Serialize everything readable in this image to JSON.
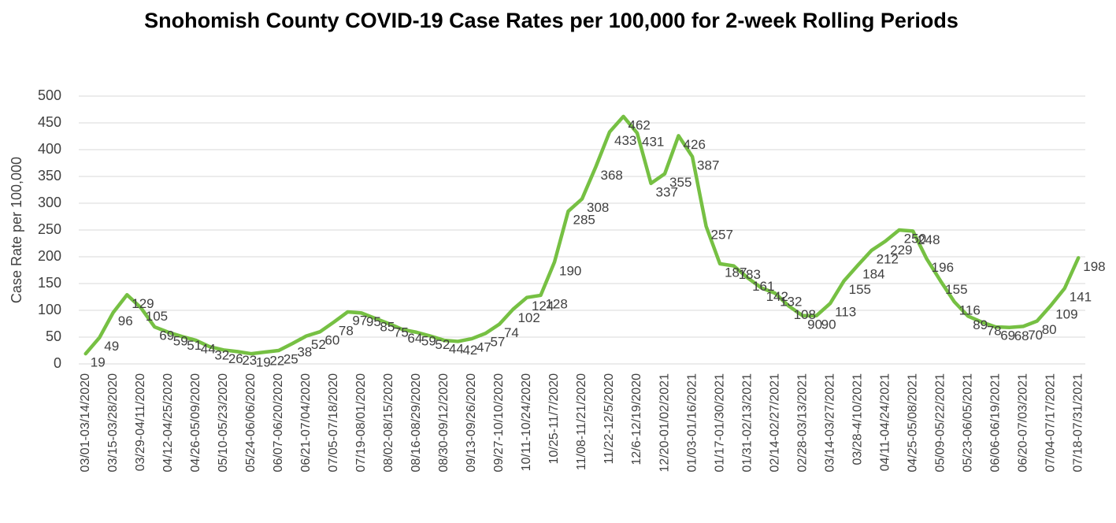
{
  "chart_data": {
    "type": "line",
    "title": "Snohomish County COVID-19 Case Rates per 100,000 for 2-week Rolling Periods",
    "y_label": "Case Rate per 100,000",
    "categories": [
      "03/01-03/14/2020",
      null,
      "03/15-03/28/2020",
      null,
      "03/29-04/11/2020",
      null,
      "04/12-04/25/2020",
      null,
      "04/26-05/09/2020",
      null,
      "05/10-05/23/2020",
      null,
      "05/24-06/06/2020",
      null,
      "06/07-06/20/2020",
      null,
      "06/21-07/04/2020",
      null,
      "07/05-07/18/2020",
      null,
      "07/19-08/01/2020",
      null,
      "08/02-08/15/2020",
      null,
      "08/16-08/29/2020",
      null,
      "08/30-09/12/2020",
      null,
      "09/13-09/26/2020",
      null,
      "09/27-10/10/2020",
      null,
      "10/11-10/24/2020",
      null,
      "10/25-11/7/2020",
      null,
      "11/08-11/21/2020",
      null,
      "11/22-12/5/2020",
      null,
      "12/6-12/19/2020",
      null,
      "12/20-01/02/2021",
      null,
      "01/03-01/16/2021",
      null,
      "01/17-01/30/2021",
      null,
      "01/31-02/13/2021",
      null,
      "02/14-02/27/2021",
      null,
      "02/28-03/13/2021",
      null,
      "03/14-03/27/2021",
      null,
      "03/28-4/10/2021",
      null,
      "04/11-04/24/2021",
      null,
      "04/25-05/08/2021",
      null,
      "05/09-05/22/2021",
      null,
      "05/23-06/05/2021",
      null,
      "06/06-06/19/2021",
      null,
      "06/20-07/03/2021",
      null,
      "07/04-07/17/2021",
      null,
      "07/18-07/31/2021"
    ],
    "values": [
      19,
      49,
      96,
      129,
      105,
      69,
      59,
      51,
      44,
      32,
      26,
      23,
      19,
      22,
      25,
      38,
      52,
      60,
      78,
      97,
      95,
      85,
      75,
      64,
      59,
      52,
      44,
      42,
      47,
      57,
      74,
      102,
      124,
      128,
      190,
      285,
      308,
      368,
      433,
      462,
      431,
      337,
      355,
      426,
      387,
      257,
      187,
      183,
      161,
      142,
      132,
      108,
      90,
      90,
      113,
      155,
      184,
      212,
      229,
      250,
      248,
      196,
      155,
      116,
      89,
      78,
      69,
      68,
      70,
      80,
      109,
      141,
      198
    ],
    "color": "#76c043",
    "ylim": [
      0,
      500
    ],
    "yticks": [
      0,
      50,
      100,
      150,
      200,
      250,
      300,
      350,
      400,
      450,
      500
    ],
    "grid": true
  }
}
